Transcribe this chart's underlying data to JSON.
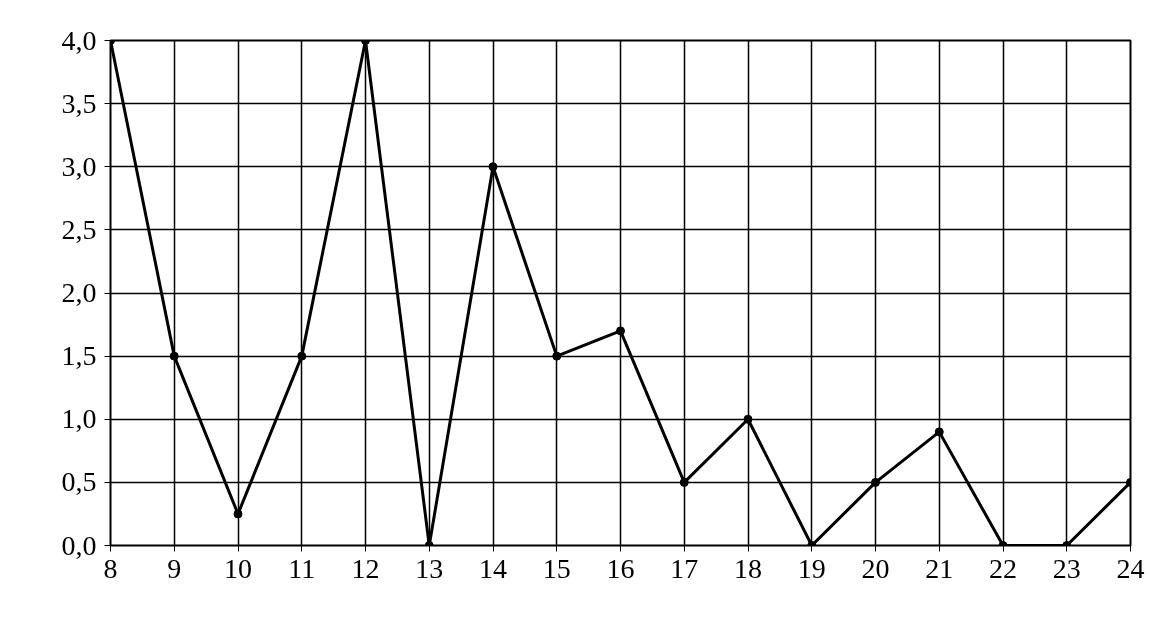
{
  "chart_data": {
    "type": "line",
    "x": [
      8,
      9,
      10,
      11,
      12,
      13,
      14,
      15,
      16,
      17,
      18,
      19,
      20,
      21,
      22,
      23,
      24
    ],
    "series": [
      {
        "color": "#000000",
        "values": [
          4.0,
          1.5,
          0.25,
          1.5,
          4.0,
          0,
          3.0,
          1.5,
          1.7,
          0.5,
          1.0,
          0,
          0.5,
          0.9,
          0,
          0,
          0.5
        ]
      }
    ],
    "xlim": [
      8,
      24
    ],
    "xticks": [
      8,
      9,
      10,
      11,
      12,
      13,
      14,
      15,
      16,
      17,
      18,
      19,
      20,
      21,
      22,
      23,
      24
    ],
    "ylim": [
      0,
      4
    ],
    "yticks": [
      {
        "value": 0,
        "label": "0,0"
      },
      {
        "value": 0.5,
        "label": "0,5"
      },
      {
        "value": 1,
        "label": "1,0"
      },
      {
        "value": 1.5,
        "label": "1,5"
      },
      {
        "value": 2,
        "label": "2,0"
      },
      {
        "value": 2.5,
        "label": "2,5"
      },
      {
        "value": 3,
        "label": "3,0"
      },
      {
        "value": 3.5,
        "label": "3,5"
      },
      {
        "value": 4,
        "label": "4,0"
      }
    ],
    "grid": true,
    "marker": "circle",
    "line_style": "solid"
  }
}
